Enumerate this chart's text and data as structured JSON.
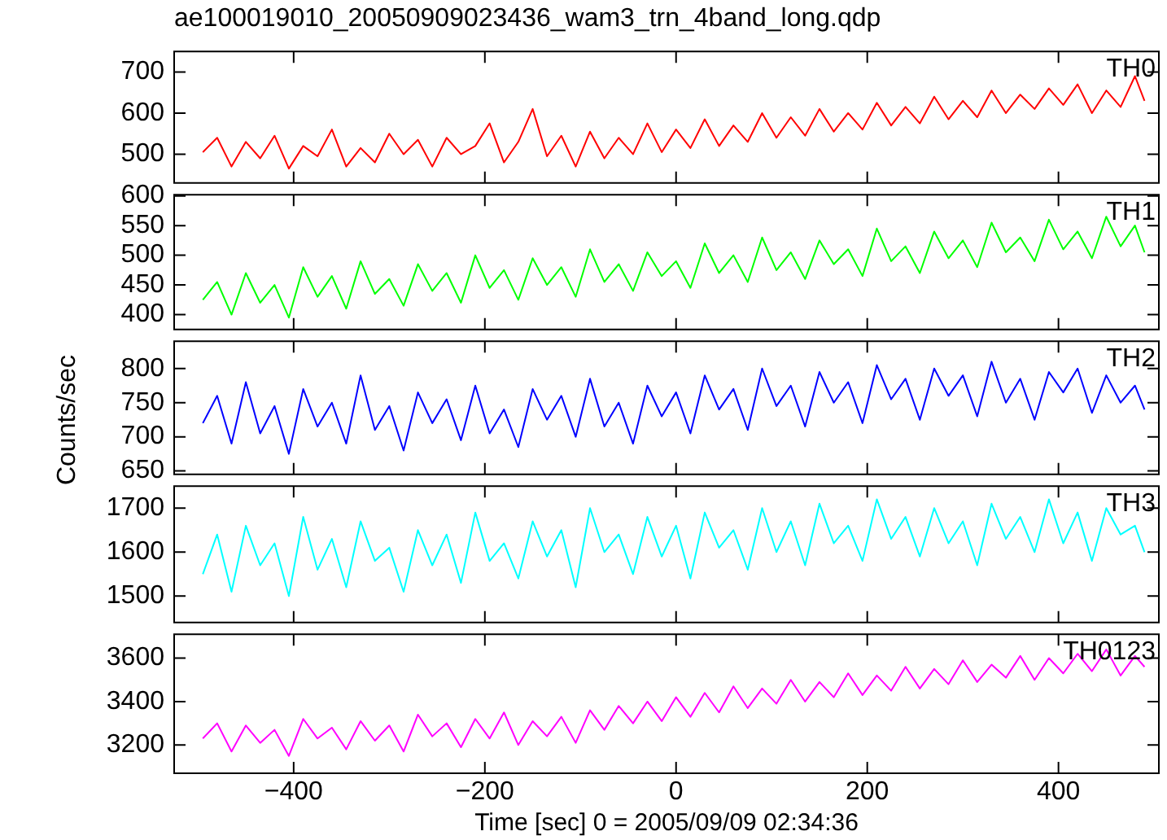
{
  "chart_data": [
    {
      "type": "line",
      "title": "ae100019010_20050909023436_wam3_trn_4band_long.qdp",
      "tick_labels": "y",
      "legend": false,
      "grid": false,
      "marker": "none",
      "line_style": "solid",
      "xlim": [
        -525,
        505
      ],
      "xticks": [
        -400,
        -200,
        0,
        200,
        400
      ],
      "ylim": [
        430,
        750
      ],
      "yticks": [
        500,
        600,
        700
      ],
      "x": [
        -495,
        -480,
        -465,
        -450,
        -435,
        -420,
        -405,
        -390,
        -375,
        -360,
        -345,
        -330,
        -315,
        -300,
        -285,
        -270,
        -255,
        -240,
        -225,
        -210,
        -195,
        -180,
        -165,
        -150,
        -135,
        -120,
        -105,
        -90,
        -75,
        -60,
        -45,
        -30,
        -15,
        0,
        15,
        30,
        45,
        60,
        75,
        90,
        105,
        120,
        135,
        150,
        165,
        180,
        195,
        210,
        225,
        240,
        255,
        270,
        285,
        300,
        315,
        330,
        345,
        360,
        375,
        390,
        405,
        420,
        435,
        450,
        465,
        480,
        490
      ],
      "series": [
        {
          "name": "TH0",
          "color": "#ff0000",
          "values": [
            505,
            540,
            470,
            530,
            490,
            545,
            465,
            520,
            495,
            560,
            470,
            515,
            480,
            550,
            500,
            535,
            470,
            540,
            500,
            520,
            575,
            480,
            530,
            610,
            495,
            545,
            470,
            555,
            490,
            540,
            500,
            575,
            505,
            560,
            515,
            585,
            520,
            570,
            530,
            600,
            540,
            590,
            545,
            610,
            555,
            600,
            560,
            625,
            570,
            615,
            575,
            640,
            585,
            630,
            590,
            655,
            600,
            645,
            610,
            660,
            620,
            670,
            600,
            655,
            615,
            690,
            630
          ]
        }
      ]
    },
    {
      "type": "line",
      "tick_labels": "y",
      "legend": false,
      "grid": false,
      "marker": "none",
      "line_style": "solid",
      "xlim": [
        -525,
        505
      ],
      "xticks": [
        -400,
        -200,
        0,
        200,
        400
      ],
      "ylim": [
        375,
        602
      ],
      "yticks": [
        400,
        450,
        500,
        550,
        600
      ],
      "x": [
        -495,
        -480,
        -465,
        -450,
        -435,
        -420,
        -405,
        -390,
        -375,
        -360,
        -345,
        -330,
        -315,
        -300,
        -285,
        -270,
        -255,
        -240,
        -225,
        -210,
        -195,
        -180,
        -165,
        -150,
        -135,
        -120,
        -105,
        -90,
        -75,
        -60,
        -45,
        -30,
        -15,
        0,
        15,
        30,
        45,
        60,
        75,
        90,
        105,
        120,
        135,
        150,
        165,
        180,
        195,
        210,
        225,
        240,
        255,
        270,
        285,
        300,
        315,
        330,
        345,
        360,
        375,
        390,
        405,
        420,
        435,
        450,
        465,
        480,
        490
      ],
      "series": [
        {
          "name": "TH1",
          "color": "#00ff00",
          "values": [
            425,
            455,
            400,
            470,
            420,
            450,
            395,
            480,
            430,
            465,
            410,
            490,
            435,
            460,
            415,
            485,
            440,
            470,
            420,
            500,
            445,
            475,
            425,
            495,
            450,
            480,
            430,
            510,
            455,
            485,
            440,
            505,
            465,
            490,
            445,
            520,
            470,
            500,
            455,
            530,
            475,
            505,
            460,
            525,
            485,
            510,
            465,
            545,
            490,
            515,
            470,
            540,
            495,
            525,
            480,
            555,
            505,
            530,
            490,
            560,
            510,
            540,
            495,
            565,
            515,
            550,
            505
          ]
        }
      ]
    },
    {
      "type": "line",
      "ylabel": "Counts/sec",
      "tick_labels": "y",
      "legend": false,
      "grid": false,
      "marker": "none",
      "line_style": "solid",
      "xlim": [
        -525,
        505
      ],
      "xticks": [
        -400,
        -200,
        0,
        200,
        400
      ],
      "ylim": [
        645,
        840
      ],
      "yticks": [
        650,
        700,
        750,
        800
      ],
      "x": [
        -495,
        -480,
        -465,
        -450,
        -435,
        -420,
        -405,
        -390,
        -375,
        -360,
        -345,
        -330,
        -315,
        -300,
        -285,
        -270,
        -255,
        -240,
        -225,
        -210,
        -195,
        -180,
        -165,
        -150,
        -135,
        -120,
        -105,
        -90,
        -75,
        -60,
        -45,
        -30,
        -15,
        0,
        15,
        30,
        45,
        60,
        75,
        90,
        105,
        120,
        135,
        150,
        165,
        180,
        195,
        210,
        225,
        240,
        255,
        270,
        285,
        300,
        315,
        330,
        345,
        360,
        375,
        390,
        405,
        420,
        435,
        450,
        465,
        480,
        490
      ],
      "series": [
        {
          "name": "TH2",
          "color": "#0000ff",
          "values": [
            720,
            760,
            690,
            780,
            705,
            745,
            675,
            770,
            715,
            750,
            690,
            790,
            710,
            745,
            680,
            765,
            720,
            755,
            695,
            775,
            705,
            740,
            685,
            770,
            725,
            760,
            700,
            785,
            715,
            750,
            690,
            775,
            730,
            765,
            705,
            790,
            740,
            770,
            710,
            800,
            745,
            775,
            715,
            795,
            750,
            780,
            720,
            805,
            755,
            785,
            725,
            800,
            760,
            790,
            730,
            810,
            750,
            785,
            725,
            795,
            765,
            800,
            735,
            790,
            750,
            775,
            740
          ]
        }
      ]
    },
    {
      "type": "line",
      "tick_labels": "y",
      "legend": false,
      "grid": false,
      "marker": "none",
      "line_style": "solid",
      "xlim": [
        -525,
        505
      ],
      "xticks": [
        -400,
        -200,
        0,
        200,
        400
      ],
      "ylim": [
        1440,
        1750
      ],
      "yticks": [
        1500,
        1600,
        1700
      ],
      "x": [
        -495,
        -480,
        -465,
        -450,
        -435,
        -420,
        -405,
        -390,
        -375,
        -360,
        -345,
        -330,
        -315,
        -300,
        -285,
        -270,
        -255,
        -240,
        -225,
        -210,
        -195,
        -180,
        -165,
        -150,
        -135,
        -120,
        -105,
        -90,
        -75,
        -60,
        -45,
        -30,
        -15,
        0,
        15,
        30,
        45,
        60,
        75,
        90,
        105,
        120,
        135,
        150,
        165,
        180,
        195,
        210,
        225,
        240,
        255,
        270,
        285,
        300,
        315,
        330,
        345,
        360,
        375,
        390,
        405,
        420,
        435,
        450,
        465,
        480,
        490
      ],
      "series": [
        {
          "name": "TH3",
          "color": "#00ffff",
          "values": [
            1550,
            1640,
            1510,
            1660,
            1570,
            1620,
            1500,
            1680,
            1560,
            1630,
            1520,
            1670,
            1580,
            1610,
            1510,
            1650,
            1570,
            1640,
            1530,
            1690,
            1580,
            1620,
            1540,
            1670,
            1590,
            1650,
            1520,
            1700,
            1600,
            1640,
            1550,
            1680,
            1590,
            1660,
            1540,
            1690,
            1610,
            1650,
            1560,
            1700,
            1600,
            1670,
            1570,
            1710,
            1620,
            1660,
            1580,
            1720,
            1630,
            1680,
            1590,
            1700,
            1620,
            1670,
            1570,
            1710,
            1630,
            1680,
            1600,
            1720,
            1620,
            1690,
            1580,
            1700,
            1640,
            1660,
            1600
          ]
        }
      ]
    },
    {
      "type": "line",
      "xlabel": "Time [sec] 0 = 2005/09/09 02:34:36",
      "legend": false,
      "grid": false,
      "marker": "none",
      "line_style": "solid",
      "xlim": [
        -525,
        505
      ],
      "xticks": [
        -400,
        -200,
        0,
        200,
        400
      ],
      "ylim": [
        3070,
        3710
      ],
      "yticks": [
        3200,
        3400,
        3600
      ],
      "x": [
        -495,
        -480,
        -465,
        -450,
        -435,
        -420,
        -405,
        -390,
        -375,
        -360,
        -345,
        -330,
        -315,
        -300,
        -285,
        -270,
        -255,
        -240,
        -225,
        -210,
        -195,
        -180,
        -165,
        -150,
        -135,
        -120,
        -105,
        -90,
        -75,
        -60,
        -45,
        -30,
        -15,
        0,
        15,
        30,
        45,
        60,
        75,
        90,
        105,
        120,
        135,
        150,
        165,
        180,
        195,
        210,
        225,
        240,
        255,
        270,
        285,
        300,
        315,
        330,
        345,
        360,
        375,
        390,
        405,
        420,
        435,
        450,
        465,
        480,
        490
      ],
      "series": [
        {
          "name": "TH0123",
          "color": "#ff00ff",
          "values": [
            3230,
            3300,
            3170,
            3290,
            3210,
            3270,
            3150,
            3320,
            3230,
            3280,
            3180,
            3310,
            3220,
            3290,
            3170,
            3340,
            3240,
            3300,
            3190,
            3320,
            3230,
            3350,
            3200,
            3310,
            3240,
            3330,
            3210,
            3360,
            3270,
            3380,
            3300,
            3400,
            3310,
            3420,
            3330,
            3440,
            3350,
            3470,
            3370,
            3460,
            3390,
            3500,
            3400,
            3490,
            3420,
            3530,
            3430,
            3520,
            3450,
            3560,
            3460,
            3550,
            3480,
            3590,
            3490,
            3570,
            3510,
            3610,
            3500,
            3600,
            3530,
            3620,
            3540,
            3640,
            3520,
            3610,
            3560
          ]
        }
      ]
    }
  ]
}
